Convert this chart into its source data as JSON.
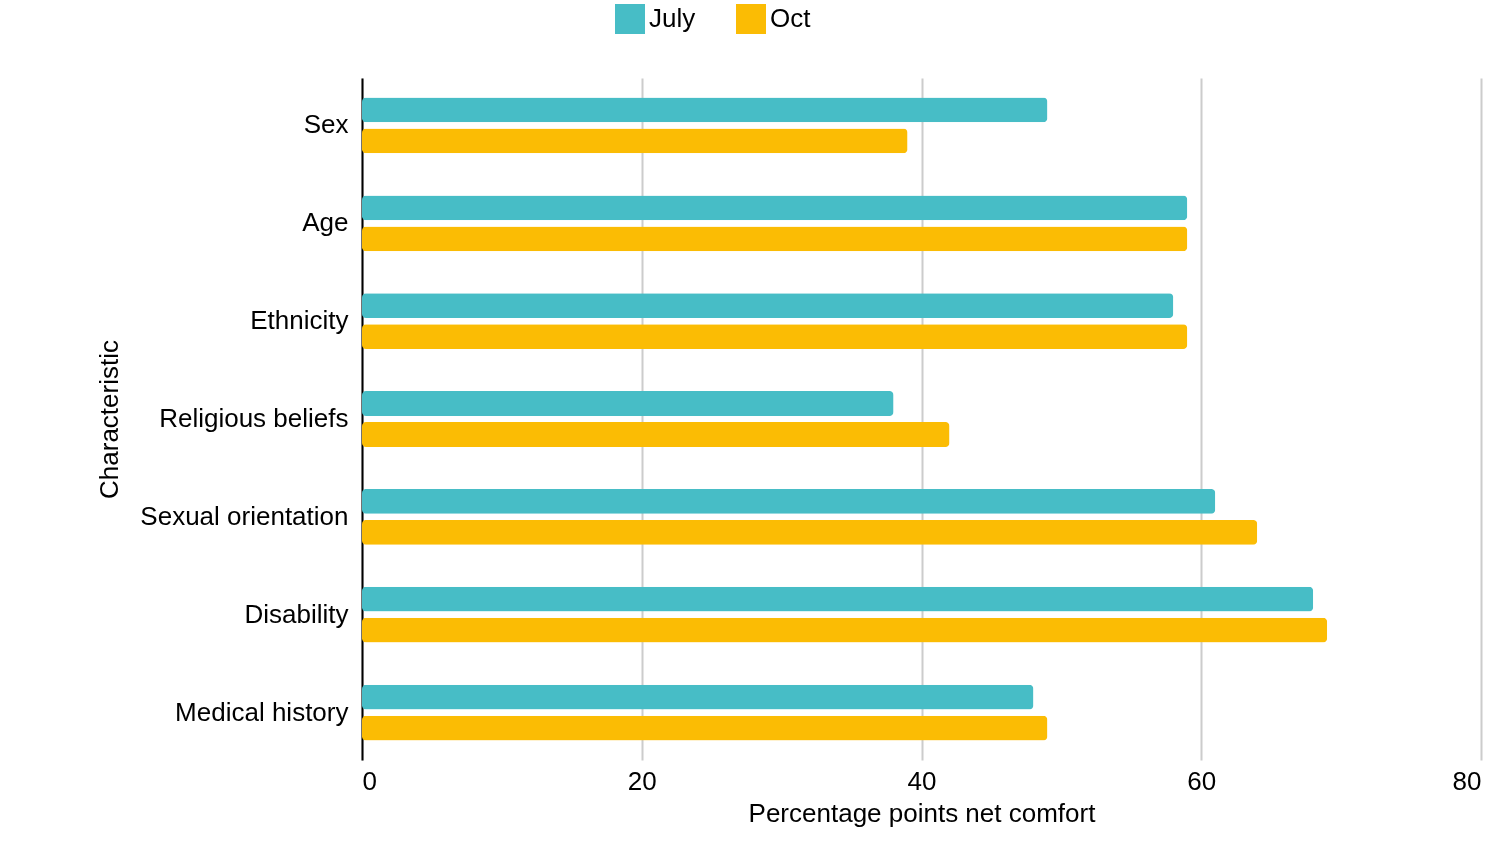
{
  "chart_data": {
    "type": "bar",
    "orientation": "horizontal",
    "xlabel": "Percentage points net comfort",
    "ylabel": "Characteristic",
    "categories": [
      "Sex",
      "Age",
      "Ethnicity",
      "Religious beliefs",
      "Sexual orientation",
      "Disability",
      "Medical history"
    ],
    "series": [
      {
        "name": "July",
        "color": "#47bdc6",
        "values": [
          49,
          59,
          58,
          38,
          61,
          68,
          48
        ]
      },
      {
        "name": "Oct",
        "color": "#fbbc04",
        "values": [
          39,
          59,
          59,
          42,
          64,
          69,
          49
        ]
      }
    ],
    "xlim": [
      0,
      80
    ],
    "xticks": [
      0,
      20,
      40,
      60,
      80
    ],
    "grid": "x",
    "legend": "top"
  }
}
